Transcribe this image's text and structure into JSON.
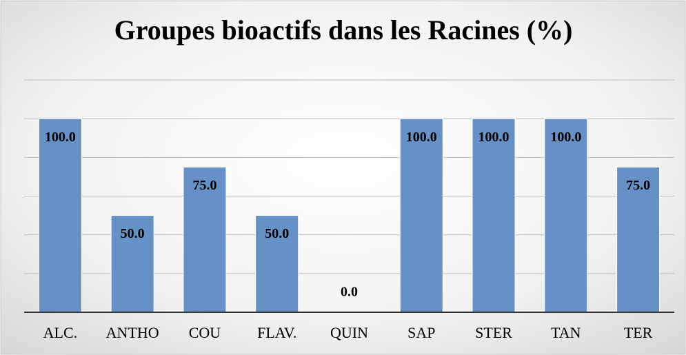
{
  "chart_data": {
    "type": "bar",
    "title": "Groupes bioactifs dans les Racines (%)",
    "categories": [
      "ALC.",
      "ANTHO",
      "COU",
      "FLAV.",
      "QUIN",
      "SAP",
      "STER",
      "TAN",
      "TER"
    ],
    "values": [
      100,
      50,
      75,
      50,
      0,
      100,
      100,
      100,
      75
    ],
    "value_labels": [
      "100.0",
      "50.0",
      "75.0",
      "50.0",
      "0.0",
      "100.0",
      "100.0",
      "100.0",
      "75.0"
    ],
    "color": "#6591c7",
    "ylim": [
      0,
      120
    ],
    "yticks": [
      0,
      20,
      40,
      60,
      80,
      100,
      120
    ],
    "grid": true
  }
}
